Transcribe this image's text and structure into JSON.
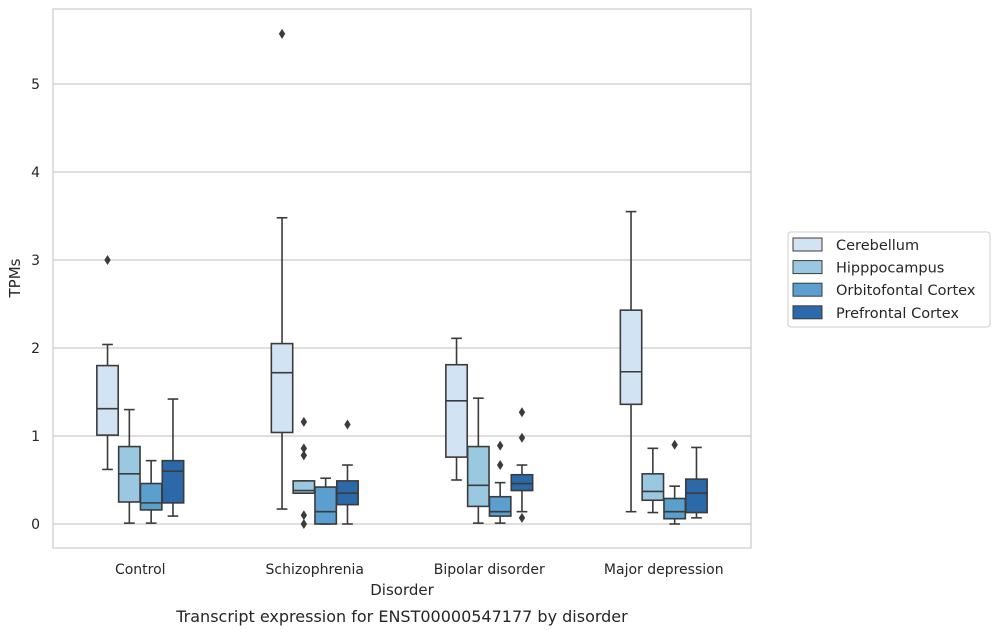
{
  "chart_data": {
    "type": "box",
    "title": "",
    "caption": "Transcript expression for ENST00000547177 by disorder",
    "xlabel": "Disorder",
    "ylabel": "TPMs",
    "ylim": [
      -0.27,
      5.85
    ],
    "yticks": [
      0,
      1,
      2,
      3,
      4,
      5
    ],
    "grid": true,
    "legend_position": "right",
    "categories": [
      "Control",
      "Schizophrenia",
      "Bipolar disorder",
      "Major depression"
    ],
    "series": [
      {
        "name": "Cerebellum",
        "color": "#d2e3f3",
        "boxes": [
          {
            "whislo": 0.62,
            "q1": 1.01,
            "med": 1.31,
            "q3": 1.8,
            "whishi": 2.04,
            "fliers": [
              3.0
            ]
          },
          {
            "whislo": 0.17,
            "q1": 1.04,
            "med": 1.72,
            "q3": 2.05,
            "whishi": 3.48,
            "fliers": [
              5.57
            ]
          },
          {
            "whislo": 0.5,
            "q1": 0.76,
            "med": 1.4,
            "q3": 1.81,
            "whishi": 2.11,
            "fliers": []
          },
          {
            "whislo": 0.14,
            "q1": 1.36,
            "med": 1.73,
            "q3": 2.43,
            "whishi": 3.55,
            "fliers": []
          }
        ]
      },
      {
        "name": "Hipppocampus",
        "color": "#9ac8e0",
        "boxes": [
          {
            "whislo": 0.01,
            "q1": 0.25,
            "med": 0.57,
            "q3": 0.88,
            "whishi": 1.3,
            "fliers": []
          },
          {
            "whislo": 0.35,
            "q1": 0.35,
            "med": 0.38,
            "q3": 0.49,
            "whishi": 0.49,
            "fliers": [
              1.16,
              0.86,
              0.78,
              0.1,
              0.0
            ]
          },
          {
            "whislo": 0.01,
            "q1": 0.2,
            "med": 0.44,
            "q3": 0.88,
            "whishi": 1.43,
            "fliers": []
          },
          {
            "whislo": 0.13,
            "q1": 0.27,
            "med": 0.37,
            "q3": 0.57,
            "whishi": 0.86,
            "fliers": []
          }
        ]
      },
      {
        "name": "Orbitofontal Cortex",
        "color": "#5a9fcd",
        "boxes": [
          {
            "whislo": 0.01,
            "q1": 0.16,
            "med": 0.24,
            "q3": 0.46,
            "whishi": 0.72,
            "fliers": []
          },
          {
            "whislo": 0.0,
            "q1": 0.0,
            "med": 0.14,
            "q3": 0.42,
            "whishi": 0.52,
            "fliers": []
          },
          {
            "whislo": 0.01,
            "q1": 0.09,
            "med": 0.14,
            "q3": 0.31,
            "whishi": 0.47,
            "fliers": [
              0.89,
              0.67
            ]
          },
          {
            "whislo": 0.0,
            "q1": 0.06,
            "med": 0.14,
            "q3": 0.29,
            "whishi": 0.43,
            "fliers": [
              0.9
            ]
          }
        ]
      },
      {
        "name": "Prefrontal Cortex",
        "color": "#2b69a9",
        "boxes": [
          {
            "whislo": 0.09,
            "q1": 0.24,
            "med": 0.6,
            "q3": 0.72,
            "whishi": 1.42,
            "fliers": []
          },
          {
            "whislo": 0.0,
            "q1": 0.22,
            "med": 0.35,
            "q3": 0.49,
            "whishi": 0.67,
            "fliers": [
              1.13
            ]
          },
          {
            "whislo": 0.14,
            "q1": 0.38,
            "med": 0.46,
            "q3": 0.56,
            "whishi": 0.67,
            "fliers": [
              1.27,
              0.98,
              0.07
            ]
          },
          {
            "whislo": 0.07,
            "q1": 0.13,
            "med": 0.35,
            "q3": 0.51,
            "whishi": 0.87,
            "fliers": []
          }
        ]
      }
    ]
  }
}
